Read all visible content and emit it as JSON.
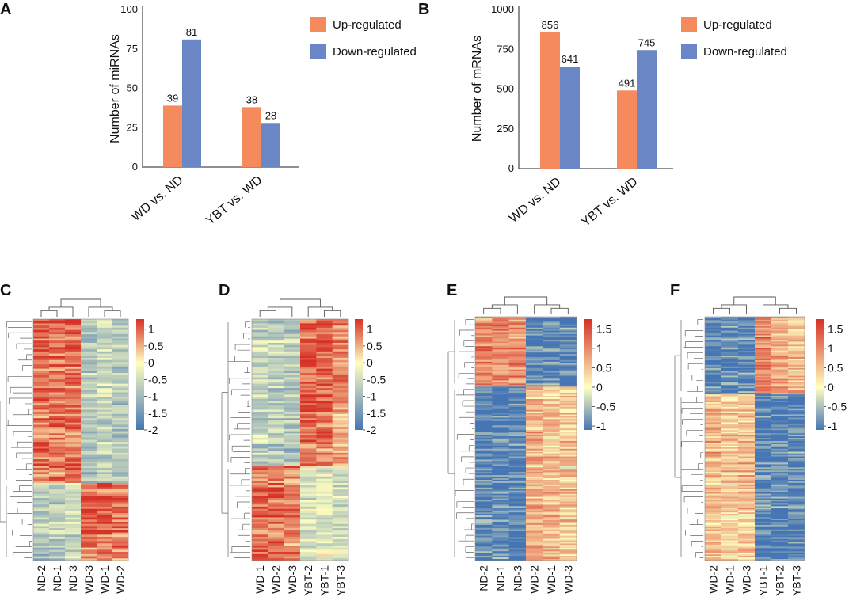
{
  "figure": {
    "colors": {
      "up": "#f58b5d",
      "down": "#6a86c5",
      "heat_low": "#4575b4",
      "heat_mid": "#ffffbf",
      "heat_high": "#d73027"
    }
  },
  "chart_data": [
    {
      "panel": "A",
      "type": "bar",
      "ylabel": "Number of miRNAs",
      "xlabel": "",
      "categories": [
        "WD vs. ND",
        "YBT vs. WD"
      ],
      "series": [
        {
          "name": "Up-regulated",
          "values": [
            39,
            38
          ],
          "labels": [
            "39",
            "38"
          ]
        },
        {
          "name": "Down-regulated",
          "values": [
            81,
            28
          ],
          "labels": [
            "81",
            "28"
          ]
        }
      ],
      "ylim": [
        0,
        100
      ],
      "yticks": [
        0,
        25,
        50,
        75,
        100
      ],
      "ytick_labels": [
        "0",
        "25",
        "50",
        "75",
        "100"
      ],
      "legend": "top-right",
      "grid": false
    },
    {
      "panel": "B",
      "type": "bar",
      "ylabel": "Number of  mRNAs",
      "xlabel": "",
      "categories": [
        "WD vs. ND",
        "YBT vs. WD"
      ],
      "series": [
        {
          "name": "Up-regulated",
          "values": [
            856,
            491
          ],
          "labels": [
            "856",
            "491"
          ]
        },
        {
          "name": "Down-regulated",
          "values": [
            641,
            745
          ],
          "labels": [
            "641",
            "745"
          ]
        }
      ],
      "ylim": [
        0,
        1000
      ],
      "yticks": [
        0,
        250,
        500,
        750,
        1000
      ],
      "ytick_labels": [
        "0",
        "250",
        "500",
        "750",
        "1000"
      ],
      "legend": "top-right",
      "grid": false
    },
    {
      "panel": "C",
      "type": "heatmap",
      "columns": [
        "ND-2",
        "ND-1",
        "ND-3",
        "WD-3",
        "WD-1",
        "WD-2"
      ],
      "colorbar_ticks": [
        "1",
        "0.5",
        "0",
        "-0.5",
        "-1",
        "-1.5",
        "-2"
      ],
      "colorbar_range": [
        -2,
        1.3
      ],
      "row_groups": [
        {
          "rows": 76,
          "pattern": [
            0.9,
            0.9,
            0.9,
            -0.8,
            -0.6,
            -0.8
          ]
        },
        {
          "rows": 36,
          "pattern": [
            -0.8,
            -0.7,
            -0.5,
            0.9,
            0.9,
            0.9
          ]
        }
      ]
    },
    {
      "panel": "D",
      "type": "heatmap",
      "columns": [
        "WD-1",
        "WD-2",
        "WD-3",
        "YBT-2",
        "YBT-1",
        "YBT-3"
      ],
      "colorbar_ticks": [
        "1",
        "0.5",
        "0",
        "-0.5",
        "-1",
        "-1.5",
        "-2"
      ],
      "colorbar_range": [
        -2,
        1.3
      ],
      "row_groups": [
        {
          "rows": 68,
          "pattern": [
            -0.6,
            -0.7,
            -0.8,
            0.9,
            0.9,
            0.7
          ]
        },
        {
          "rows": 44,
          "pattern": [
            0.9,
            0.9,
            0.8,
            -0.4,
            -0.3,
            -0.5
          ]
        }
      ]
    },
    {
      "panel": "E",
      "type": "heatmap",
      "columns": [
        "ND-2",
        "ND-1",
        "ND-3",
        "WD-2",
        "WD-1",
        "WD-3"
      ],
      "colorbar_ticks": [
        "1.5",
        "1",
        "0.5",
        "0",
        "-0.5",
        "-1"
      ],
      "colorbar_range": [
        -1.1,
        1.75
      ],
      "row_groups": [
        {
          "rows": 45,
          "pattern": [
            1.0,
            1.0,
            0.9,
            -1.0,
            -1.0,
            -1.0
          ]
        },
        {
          "rows": 112,
          "pattern": [
            -1.0,
            -1.0,
            -1.0,
            0.6,
            0.5,
            0.4
          ]
        }
      ]
    },
    {
      "panel": "F",
      "type": "heatmap",
      "columns": [
        "WD-2",
        "WD-1",
        "WD-3",
        "YBT-1",
        "YBT-2",
        "YBT-3"
      ],
      "colorbar_ticks": [
        "1.5",
        "1",
        "0.5",
        "0",
        "-0.5",
        "-1"
      ],
      "colorbar_range": [
        -1.1,
        1.75
      ],
      "row_groups": [
        {
          "rows": 50,
          "pattern": [
            -1.0,
            -1.0,
            -1.0,
            1.0,
            0.7,
            0.5
          ]
        },
        {
          "rows": 107,
          "pattern": [
            0.6,
            0.4,
            0.5,
            -1.0,
            -1.0,
            -1.0
          ]
        }
      ]
    }
  ]
}
